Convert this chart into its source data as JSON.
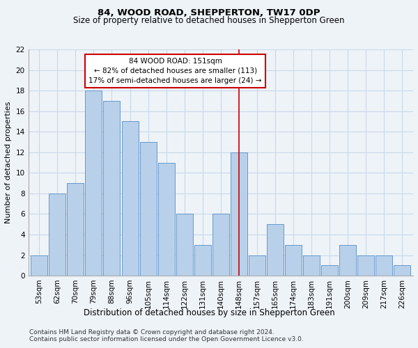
{
  "title1": "84, WOOD ROAD, SHEPPERTON, TW17 0DP",
  "title2": "Size of property relative to detached houses in Shepperton Green",
  "xlabel": "Distribution of detached houses by size in Shepperton Green",
  "ylabel": "Number of detached properties",
  "footer1": "Contains HM Land Registry data © Crown copyright and database right 2024.",
  "footer2": "Contains public sector information licensed under the Open Government Licence v3.0.",
  "categories": [
    "53sqm",
    "62sqm",
    "70sqm",
    "79sqm",
    "88sqm",
    "96sqm",
    "105sqm",
    "114sqm",
    "122sqm",
    "131sqm",
    "140sqm",
    "148sqm",
    "157sqm",
    "165sqm",
    "174sqm",
    "183sqm",
    "191sqm",
    "200sqm",
    "209sqm",
    "217sqm",
    "226sqm"
  ],
  "values": [
    2,
    8,
    9,
    18,
    17,
    15,
    13,
    11,
    6,
    3,
    6,
    12,
    2,
    5,
    3,
    2,
    1,
    3,
    2,
    2,
    1
  ],
  "bar_color": "#b8d0ea",
  "bar_edge_color": "#6699cc",
  "grid_color": "#c8d8e8",
  "background_color": "#eef3f8",
  "vline_x_index": 11,
  "vline_color": "#cc0000",
  "annotation_text": "84 WOOD ROAD: 151sqm\n← 82% of detached houses are smaller (113)\n17% of semi-detached houses are larger (24) →",
  "annotation_box_color": "#cc0000",
  "ylim": [
    0,
    22
  ],
  "yticks": [
    0,
    2,
    4,
    6,
    8,
    10,
    12,
    14,
    16,
    18,
    20,
    22
  ],
  "title1_fontsize": 9.5,
  "title2_fontsize": 8.5,
  "xlabel_fontsize": 8.5,
  "ylabel_fontsize": 8,
  "tick_fontsize": 7.5,
  "footer_fontsize": 6.5,
  "ann_fontsize": 7.5
}
